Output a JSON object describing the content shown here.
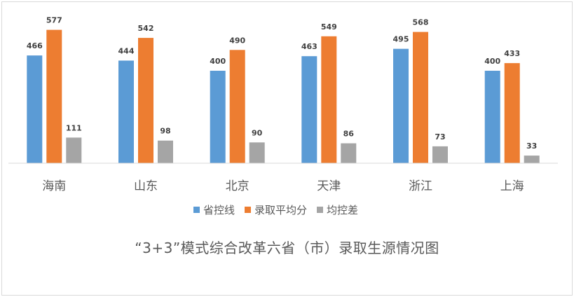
{
  "chart_data": {
    "type": "bar",
    "title": "“3+3”模式综合改革六省（市）录取生源情况图",
    "categories": [
      "海南",
      "山东",
      "北京",
      "天津",
      "浙江",
      "上海"
    ],
    "series": [
      {
        "name": "省控线",
        "color": "#5b9bd5",
        "values": [
          466,
          444,
          400,
          463,
          495,
          400
        ]
      },
      {
        "name": "录取平均分",
        "color": "#ed7d31",
        "values": [
          577,
          542,
          490,
          549,
          568,
          433
        ]
      },
      {
        "name": "均控差",
        "color": "#a5a5a5",
        "values": [
          111,
          98,
          90,
          86,
          73,
          33
        ]
      }
    ],
    "ylim": [
      0,
      600
    ],
    "grid": false,
    "legend_position": "bottom"
  }
}
